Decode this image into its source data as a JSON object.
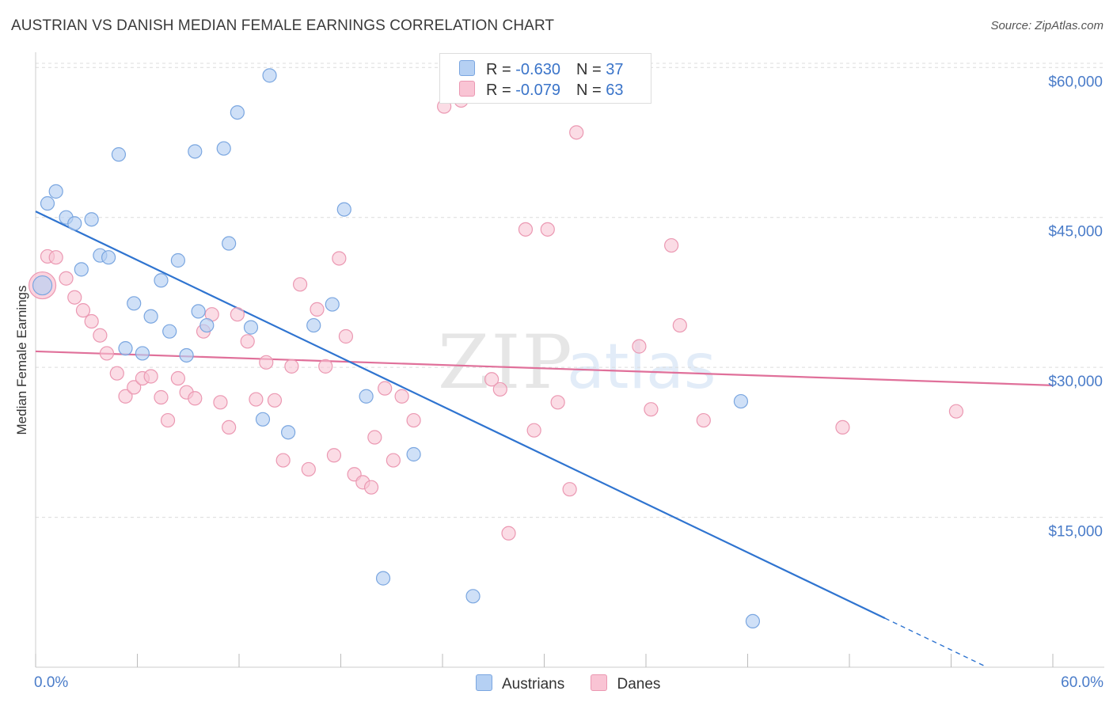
{
  "title": "AUSTRIAN VS DANISH MEDIAN FEMALE EARNINGS CORRELATION CHART",
  "source": "Source: ZipAtlas.com",
  "colors": {
    "austrians_fill": "#b5d0f3",
    "austrians_stroke": "#7aa6e0",
    "austrians_line": "#2f74d0",
    "danes_fill": "#f9c4d4",
    "danes_stroke": "#eb98b2",
    "danes_line": "#e0709a",
    "tick_label": "#4a7cc9",
    "grid": "#dcdcdc"
  },
  "legend_top": [
    {
      "r_label": "R = ",
      "r_value": "-0.630",
      "n_label": "N = ",
      "n_value": "37"
    },
    {
      "r_label": "R = ",
      "r_value": "-0.079",
      "n_label": "N = ",
      "n_value": "63"
    }
  ],
  "legend_bottom": [
    "Austrians",
    "Danes"
  ],
  "chart_data": {
    "type": "scatter",
    "title": "AUSTRIAN VS DANISH MEDIAN FEMALE EARNINGS CORRELATION CHART",
    "xlabel": "",
    "ylabel": "Median Female Earnings",
    "xlim": [
      0,
      60
    ],
    "ylim": [
      0,
      62000
    ],
    "x_tick_labels": {
      "min": "0.0%",
      "max": "60.0%"
    },
    "y_ticks": [
      {
        "value": 15000,
        "label": "$15,000"
      },
      {
        "value": 30000,
        "label": "$30,000"
      },
      {
        "value": 45000,
        "label": "$45,000"
      },
      {
        "value": 60000,
        "label": "$60,000"
      }
    ],
    "grid": true,
    "legend_position": "top-center",
    "series": [
      {
        "name": "Austrians",
        "r": -0.63,
        "n": 37,
        "trend": {
          "x0": 0,
          "y0": 45600,
          "x1": 50.1,
          "y1": 4900,
          "dash_to_x": 56.0,
          "dash_to_y": 100
        },
        "points": [
          [
            0.4,
            38200
          ],
          [
            0.7,
            46400
          ],
          [
            1.2,
            47600
          ],
          [
            1.8,
            45000
          ],
          [
            2.3,
            44400
          ],
          [
            3.3,
            44800
          ],
          [
            2.7,
            39800
          ],
          [
            3.8,
            41200
          ],
          [
            4.3,
            41000
          ],
          [
            4.9,
            51300
          ],
          [
            5.3,
            31900
          ],
          [
            5.8,
            36400
          ],
          [
            6.3,
            31400
          ],
          [
            6.8,
            35100
          ],
          [
            7.4,
            38700
          ],
          [
            7.9,
            33600
          ],
          [
            8.4,
            40700
          ],
          [
            8.9,
            31200
          ],
          [
            9.4,
            51600
          ],
          [
            9.6,
            35600
          ],
          [
            10.1,
            34200
          ],
          [
            11.1,
            51900
          ],
          [
            11.4,
            42400
          ],
          [
            11.9,
            55500
          ],
          [
            12.7,
            34000
          ],
          [
            13.4,
            24800
          ],
          [
            13.8,
            59200
          ],
          [
            14.9,
            23500
          ],
          [
            16.4,
            34200
          ],
          [
            17.5,
            36300
          ],
          [
            18.2,
            45800
          ],
          [
            19.5,
            27100
          ],
          [
            20.5,
            8900
          ],
          [
            22.3,
            21300
          ],
          [
            25.8,
            7100
          ],
          [
            41.6,
            26600
          ],
          [
            42.3,
            4600
          ]
        ]
      },
      {
        "name": "Danes",
        "r": -0.079,
        "n": 63,
        "trend": {
          "x0": 0,
          "y0": 31600,
          "x1": 60,
          "y1": 28200
        },
        "points": [
          [
            0.7,
            41100
          ],
          [
            1.2,
            41000
          ],
          [
            1.8,
            38900
          ],
          [
            2.3,
            37000
          ],
          [
            2.8,
            35700
          ],
          [
            3.3,
            34600
          ],
          [
            3.8,
            33200
          ],
          [
            4.2,
            31400
          ],
          [
            4.8,
            29400
          ],
          [
            5.3,
            27100
          ],
          [
            5.8,
            28000
          ],
          [
            6.3,
            28900
          ],
          [
            6.8,
            29100
          ],
          [
            7.4,
            27000
          ],
          [
            7.8,
            24700
          ],
          [
            8.4,
            28900
          ],
          [
            8.9,
            27500
          ],
          [
            9.4,
            26900
          ],
          [
            9.9,
            33600
          ],
          [
            10.4,
            35300
          ],
          [
            10.9,
            26500
          ],
          [
            11.4,
            24000
          ],
          [
            11.9,
            35300
          ],
          [
            12.5,
            32600
          ],
          [
            13.0,
            26800
          ],
          [
            13.6,
            30500
          ],
          [
            14.1,
            26700
          ],
          [
            14.6,
            20700
          ],
          [
            15.1,
            30100
          ],
          [
            15.6,
            38300
          ],
          [
            16.1,
            19800
          ],
          [
            16.6,
            35800
          ],
          [
            17.1,
            30100
          ],
          [
            17.6,
            21200
          ],
          [
            17.9,
            40900
          ],
          [
            18.3,
            33100
          ],
          [
            18.8,
            19300
          ],
          [
            19.3,
            18500
          ],
          [
            19.8,
            18000
          ],
          [
            20.0,
            23000
          ],
          [
            20.6,
            27900
          ],
          [
            21.1,
            20700
          ],
          [
            21.6,
            27100
          ],
          [
            22.3,
            24700
          ],
          [
            24.1,
            56100
          ],
          [
            25.1,
            56700
          ],
          [
            26.9,
            28800
          ],
          [
            27.4,
            27800
          ],
          [
            27.9,
            13400
          ],
          [
            28.9,
            43800
          ],
          [
            29.4,
            23700
          ],
          [
            30.2,
            43800
          ],
          [
            30.8,
            26500
          ],
          [
            31.5,
            17800
          ],
          [
            31.9,
            53500
          ],
          [
            35.6,
            32100
          ],
          [
            36.3,
            25800
          ],
          [
            37.5,
            42200
          ],
          [
            38.0,
            34200
          ],
          [
            39.4,
            24700
          ],
          [
            47.6,
            24000
          ],
          [
            54.3,
            25600
          ],
          [
            0.4,
            38200
          ]
        ]
      }
    ]
  }
}
